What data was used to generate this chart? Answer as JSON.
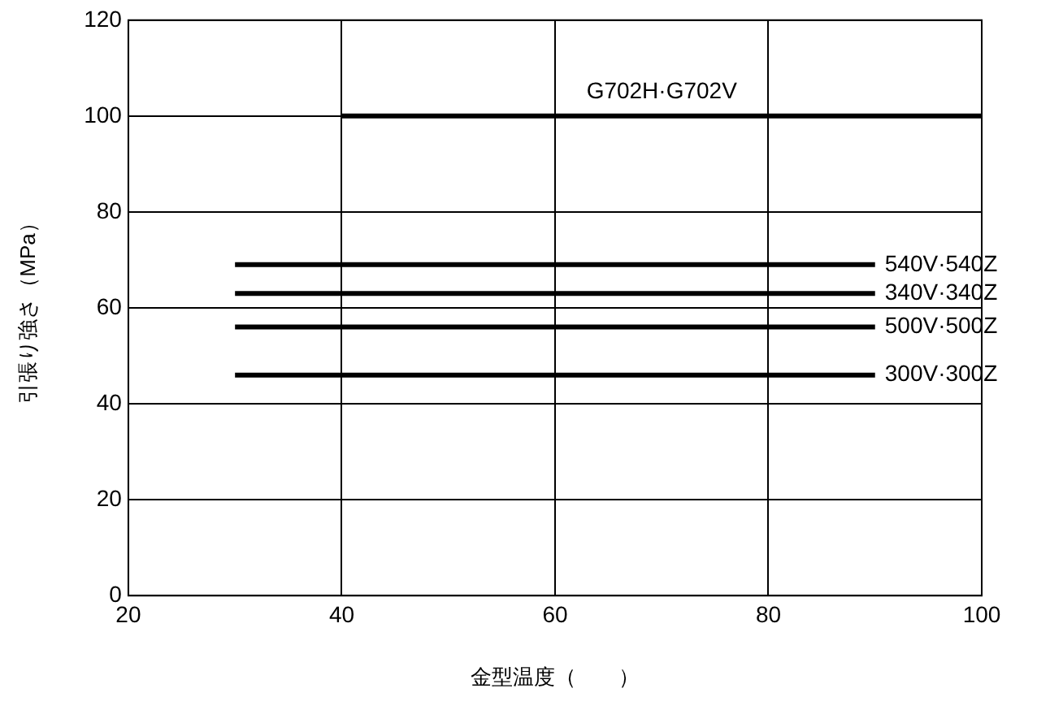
{
  "chart_data": {
    "type": "line",
    "xlabel": "金型温度（　　）",
    "ylabel": "引張り強さ（MPa）",
    "xlim": [
      20,
      100
    ],
    "xticks": [
      20,
      40,
      60,
      80,
      100
    ],
    "ylim": [
      0,
      120
    ],
    "yticks": [
      0,
      20,
      40,
      60,
      80,
      100,
      120
    ],
    "grid": true,
    "legend": false,
    "marker": "none",
    "line_style": "solid",
    "series": [
      {
        "name": "G702H·G702V",
        "color": "#000000",
        "x": [
          40,
          100
        ],
        "values": [
          100,
          100
        ]
      },
      {
        "name": "540V·540Z",
        "color": "#000000",
        "x": [
          30,
          90
        ],
        "values": [
          69,
          69
        ]
      },
      {
        "name": "340V·340Z",
        "color": "#000000",
        "x": [
          30,
          90
        ],
        "values": [
          63,
          63
        ]
      },
      {
        "name": "500V·500Z",
        "color": "#000000",
        "x": [
          30,
          90
        ],
        "values": [
          56,
          56
        ]
      },
      {
        "name": "300V·300Z",
        "color": "#000000",
        "x": [
          30,
          90
        ],
        "values": [
          46,
          46
        ]
      }
    ]
  }
}
